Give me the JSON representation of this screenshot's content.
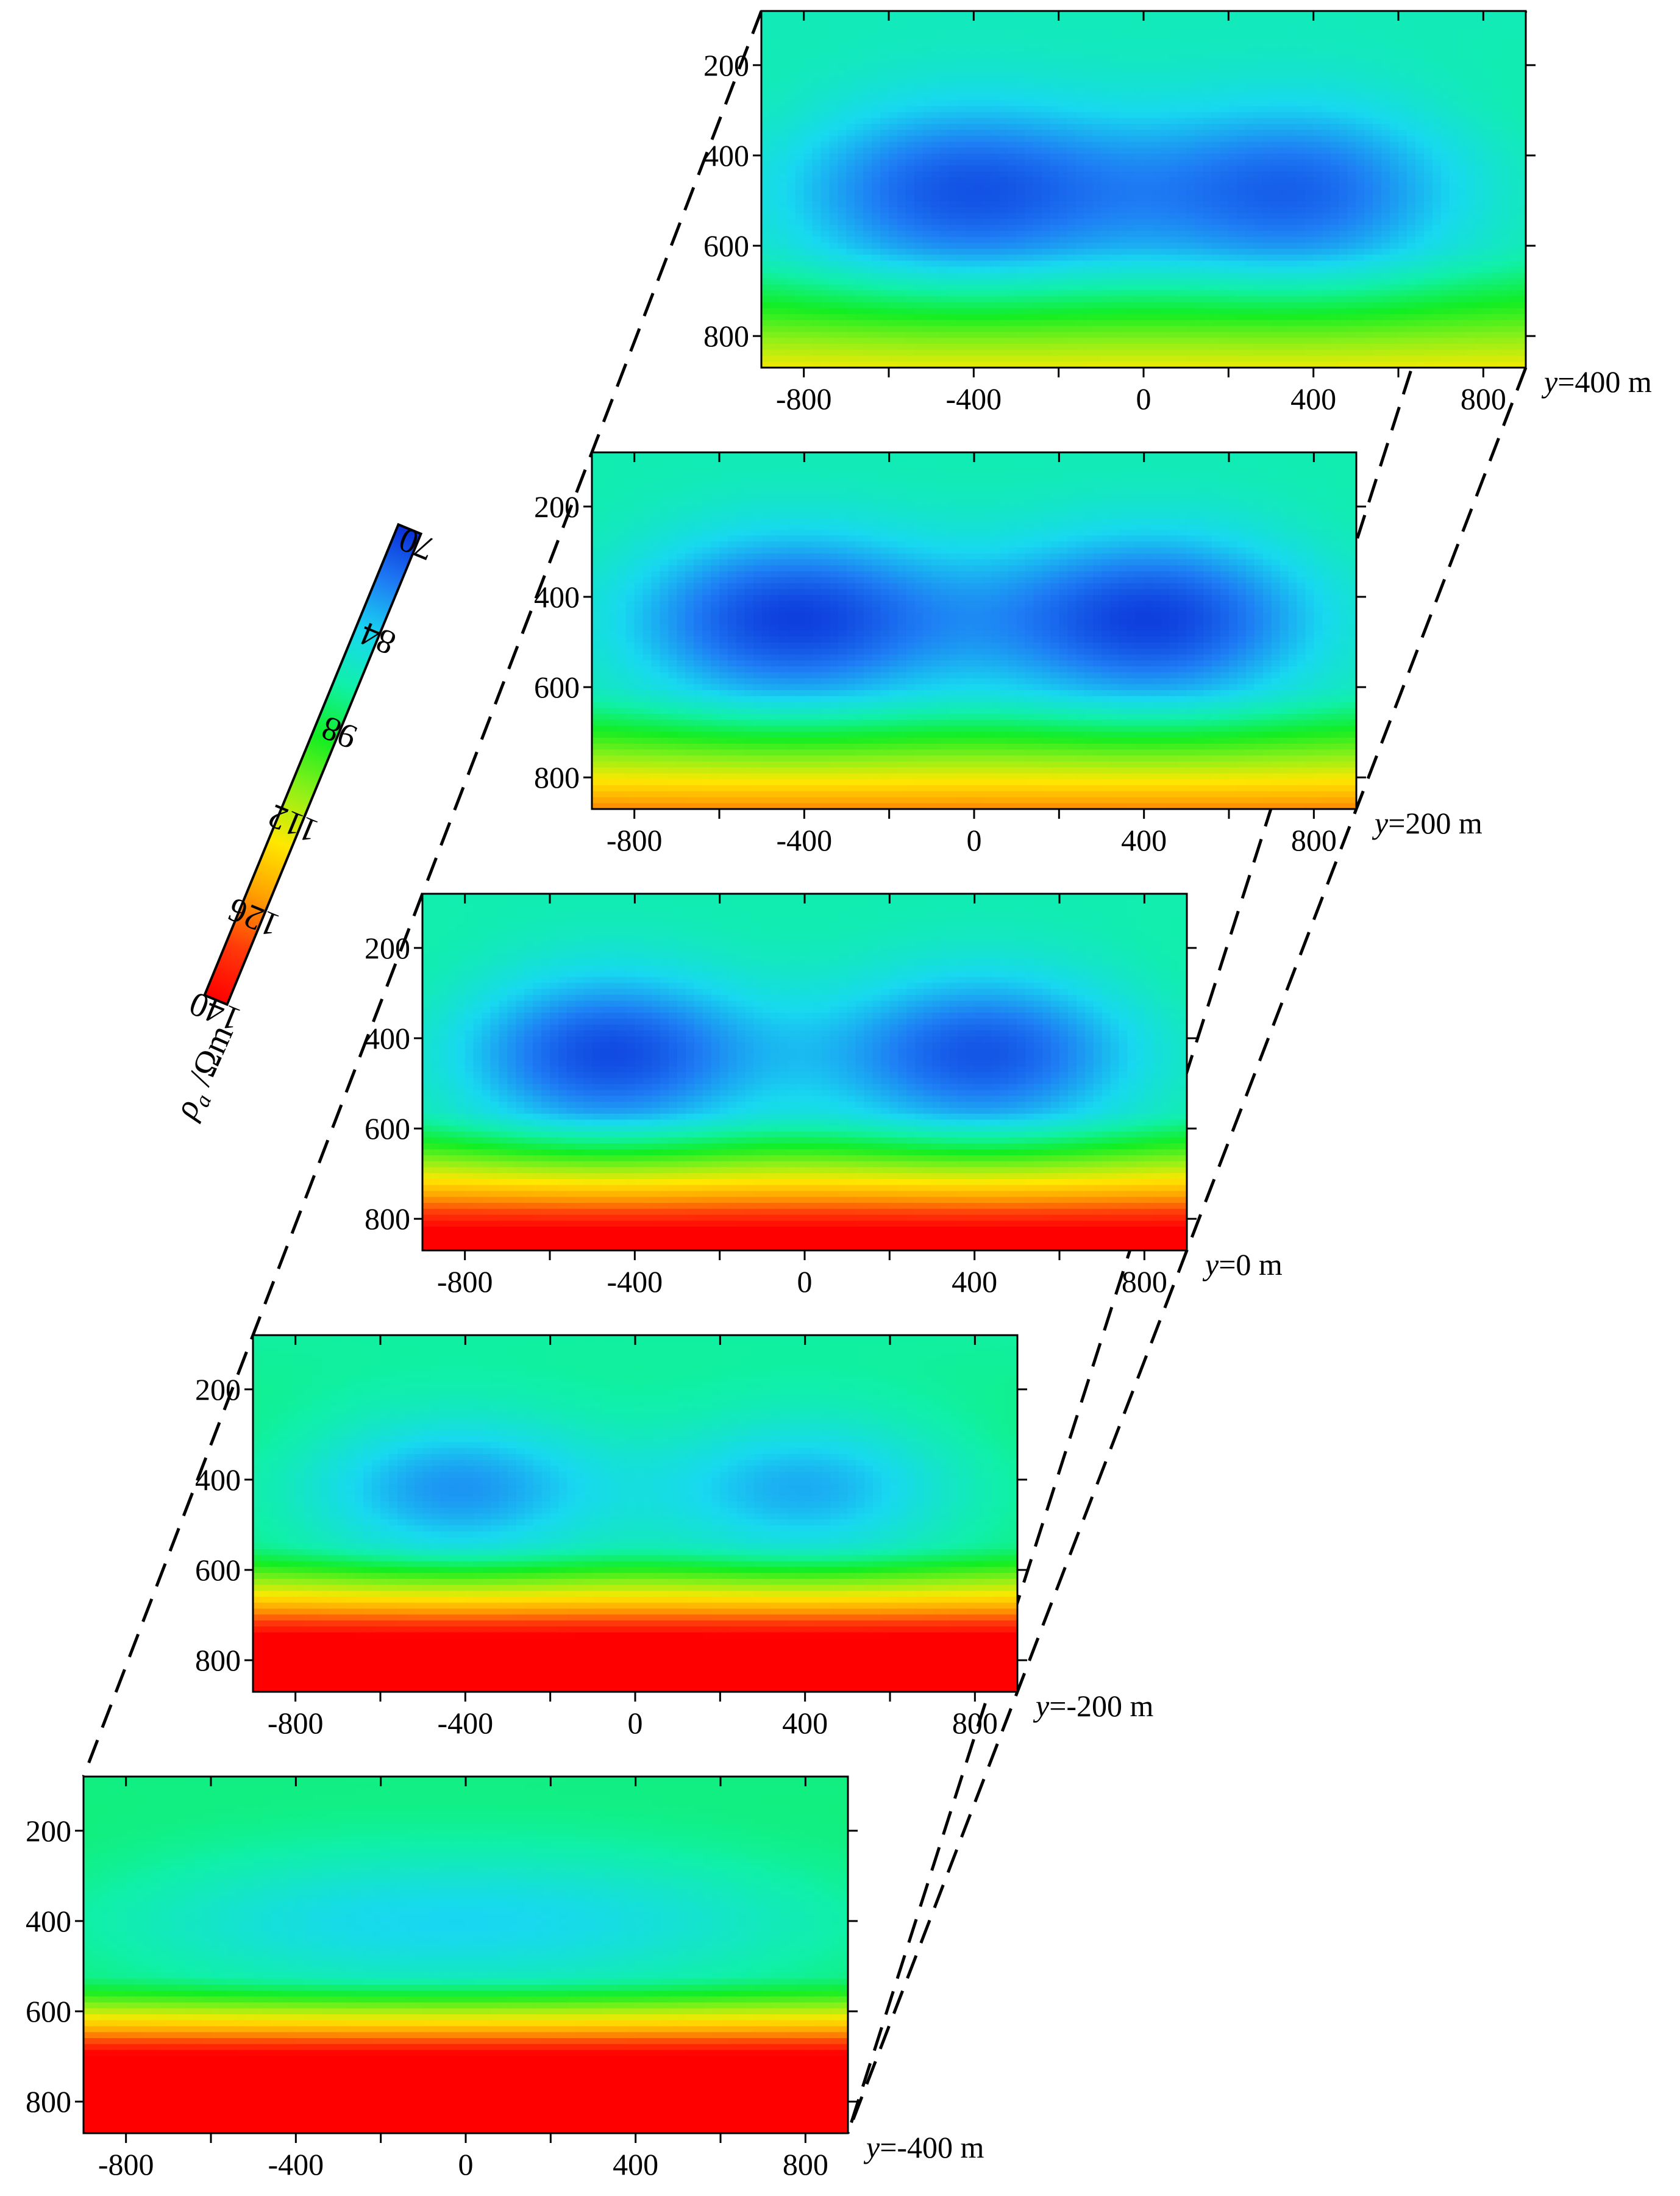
{
  "chart_data": {
    "type": "heatmap",
    "colorbar": {
      "label_symbol": "ρ",
      "label_subscript": "a",
      "label_unit": " /Ωm",
      "ticks": [
        70,
        84,
        98,
        112,
        126,
        140
      ],
      "tick_labels": [
        "70",
        "84",
        "98",
        "112",
        "126",
        "140"
      ],
      "vmin": 70,
      "vmax": 140,
      "colors": [
        "#0a2fd8",
        "#1e7cf4",
        "#18d8f0",
        "#10f0a8",
        "#12ee22",
        "#8ef018",
        "#ffe800",
        "#ffa000",
        "#ff3a0a",
        "#ff0000"
      ]
    },
    "x_ticks": [
      -800,
      -400,
      0,
      400,
      800
    ],
    "x_tick_labels": [
      "-800",
      "-400",
      "0",
      "400",
      "800"
    ],
    "xlim": [
      -900,
      900
    ],
    "y_ticks": [
      200,
      400,
      600,
      800
    ],
    "y_tick_labels": [
      "200",
      "400",
      "600",
      "800"
    ],
    "ylim": [
      80,
      870
    ],
    "slices": [
      {
        "label_var": "y",
        "label_text": "=400 m",
        "y": 400,
        "base": 94,
        "low": 91,
        "anomalies": [
          {
            "x": -420,
            "z": 480,
            "amp": 20,
            "sx": 320,
            "sz": 150
          },
          {
            "x": 370,
            "z": 480,
            "amp": 18,
            "sx": 290,
            "sz": 150
          }
        ],
        "depth_trend": {
          "start": 600,
          "scale": 270,
          "amp": 22
        }
      },
      {
        "label_var": "y",
        "label_text": "=200 m",
        "y": 200,
        "base": 94,
        "low": 92,
        "anomalies": [
          {
            "x": -430,
            "z": 450,
            "amp": 22,
            "sx": 290,
            "sz": 140
          },
          {
            "x": 420,
            "z": 450,
            "amp": 22,
            "sx": 290,
            "sz": 140
          }
        ],
        "depth_trend": {
          "start": 600,
          "scale": 240,
          "amp": 28
        }
      },
      {
        "label_var": "y",
        "label_text": "=0 m",
        "y": 0,
        "base": 95,
        "low": 92,
        "anomalies": [
          {
            "x": -460,
            "z": 435,
            "amp": 22,
            "sx": 270,
            "sz": 135
          },
          {
            "x": 420,
            "z": 435,
            "amp": 21,
            "sx": 280,
            "sz": 135
          }
        ],
        "depth_trend": {
          "start": 560,
          "scale": 210,
          "amp": 34
        }
      },
      {
        "label_var": "y",
        "label_text": "=-200 m",
        "y": -200,
        "base": 96,
        "low": 93,
        "anomalies": [
          {
            "x": -420,
            "z": 420,
            "amp": 16,
            "sx": 260,
            "sz": 115
          },
          {
            "x": 400,
            "z": 420,
            "amp": 14,
            "sx": 260,
            "sz": 115
          }
        ],
        "depth_trend": {
          "start": 540,
          "scale": 190,
          "amp": 40
        }
      },
      {
        "label_var": "y",
        "label_text": "=-400 m",
        "y": -400,
        "base": 97,
        "low": 95,
        "anomalies": [
          {
            "x": -300,
            "z": 400,
            "amp": 8,
            "sx": 450,
            "sz": 110
          },
          {
            "x": 350,
            "z": 400,
            "amp": 7,
            "sx": 450,
            "sz": 110
          }
        ],
        "depth_trend": {
          "start": 520,
          "scale": 180,
          "amp": 45
        }
      }
    ]
  }
}
